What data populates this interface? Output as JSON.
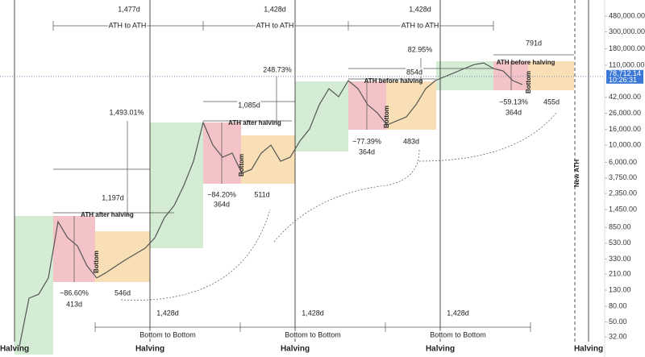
{
  "chart_data": {
    "type": "line",
    "categories": [
      null,
      null,
      null,
      null,
      null,
      null,
      null,
      null,
      null,
      null,
      null,
      null,
      null,
      null,
      null,
      null,
      null,
      null,
      null,
      null,
      null,
      null,
      null,
      null,
      null,
      null,
      null,
      null,
      null,
      null,
      null,
      null,
      null,
      null,
      null,
      null,
      null,
      null,
      null,
      null,
      null,
      null,
      null,
      null,
      null,
      null,
      null,
      null,
      null,
      null,
      null,
      null,
      null
    ],
    "values": [
      24,
      102,
      115,
      187,
      1010,
      624,
      490,
      268,
      187,
      221,
      268,
      325,
      385,
      456,
      624,
      1143,
      1640,
      3000,
      6190,
      19800,
      10050,
      7000,
      7890,
      4320,
      4860,
      7890,
      10050,
      6190,
      7000,
      11350,
      16300,
      33700,
      54600,
      42900,
      69500,
      54600,
      33700,
      26400,
      18400,
      20700,
      23400,
      33700,
      54600,
      69500,
      78300,
      88300,
      99800,
      112000,
      118000,
      99800,
      92700,
      69500,
      61500
    ],
    "color": "#555555",
    "log_scale": true,
    "ylim": [
      17.5,
      778000
    ],
    "yticks": [
      {
        "value": 480000,
        "label": "480,000.00"
      },
      {
        "value": 300000,
        "label": "300,000.00"
      },
      {
        "value": 180000,
        "label": "180,000.00"
      },
      {
        "value": 110000,
        "label": "110,000.00"
      },
      {
        "value": 42000,
        "label": "42,000.00"
      },
      {
        "value": 26000,
        "label": "26,000.00"
      },
      {
        "value": 16000,
        "label": "16,000.00"
      },
      {
        "value": 10000,
        "label": "10,000.00"
      },
      {
        "value": 6000,
        "label": "6,000.00"
      },
      {
        "value": 3750,
        "label": "3,750.00"
      },
      {
        "value": 2350,
        "label": "2,350.00"
      },
      {
        "value": 1450,
        "label": "1,450.00"
      },
      {
        "value": 850,
        "label": "850.00"
      },
      {
        "value": 530,
        "label": "530.00"
      },
      {
        "value": 330,
        "label": "330.00"
      },
      {
        "value": 210,
        "label": "210.00"
      },
      {
        "value": 130,
        "label": "130.00"
      },
      {
        "value": 80,
        "label": "80.00"
      },
      {
        "value": 50,
        "label": "50.00"
      },
      {
        "value": 32,
        "label": "32.00"
      }
    ],
    "last_price": {
      "value": 78712.14,
      "label": "78,712.14"
    },
    "last_time": "10:26:31",
    "halving_labels": [
      "Halving",
      "Halving",
      "Halving",
      "Halving",
      "Halving"
    ],
    "annotations": [
      "1,477d",
      "1,428d",
      "1,428d",
      "ATH to ATH",
      "ATH to ATH",
      "ATH to ATH",
      "791d",
      "ATH before halving",
      "82.95%",
      "854d",
      "248.73%",
      "ATH before halving",
      "1,085d",
      "1,493.01%",
      "ATH after halving",
      "1,197d",
      "ATH after halving",
      "−86.60%",
      "413d",
      "546d",
      "−84.20%",
      "364d",
      "511d",
      "−77.39%",
      "364d",
      "483d",
      "−59.13%",
      "364d",
      "455d",
      "Bottom",
      "Bottom",
      "Bottom",
      "Bottom",
      "1,428d",
      "1,428d",
      "1,428d",
      "Bottom to Bottom",
      "Bottom to Bottom",
      "Bottom to Bottom",
      "New ATH"
    ]
  }
}
